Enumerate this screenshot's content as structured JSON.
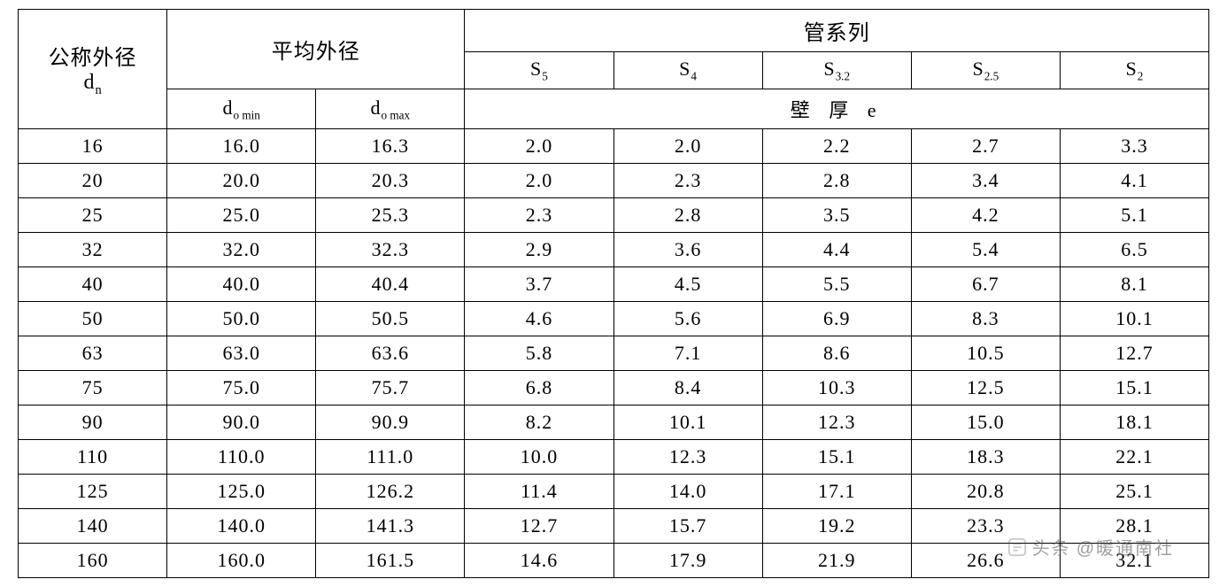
{
  "headers": {
    "nominal_od": "公称外径",
    "nominal_od_sym": "d",
    "nominal_od_sub": "n",
    "avg_od": "平均外径",
    "pipe_series": "管系列",
    "d_sym": "d",
    "d_sub_prefix": "o",
    "d_min_sub": " min",
    "d_max_sub": " max",
    "wall_thickness": "壁 厚 e",
    "series_sym": "S",
    "series_subs": [
      "5",
      "4",
      "3.2",
      "2.5",
      "2"
    ]
  },
  "columns": [
    "dn",
    "do_min",
    "do_max",
    "S5",
    "S4",
    "S3_2",
    "S2_5",
    "S2"
  ],
  "col_widths": [
    "12.5%",
    "12.5%",
    "12.5%",
    "12.5%",
    "12.5%",
    "12.5%",
    "12.5%",
    "12.5%"
  ],
  "rows": [
    [
      "16",
      "16.0",
      "16.3",
      "2.0",
      "2.0",
      "2.2",
      "2.7",
      "3.3"
    ],
    [
      "20",
      "20.0",
      "20.3",
      "2.0",
      "2.3",
      "2.8",
      "3.4",
      "4.1"
    ],
    [
      "25",
      "25.0",
      "25.3",
      "2.3",
      "2.8",
      "3.5",
      "4.2",
      "5.1"
    ],
    [
      "32",
      "32.0",
      "32.3",
      "2.9",
      "3.6",
      "4.4",
      "5.4",
      "6.5"
    ],
    [
      "40",
      "40.0",
      "40.4",
      "3.7",
      "4.5",
      "5.5",
      "6.7",
      "8.1"
    ],
    [
      "50",
      "50.0",
      "50.5",
      "4.6",
      "5.6",
      "6.9",
      "8.3",
      "10.1"
    ],
    [
      "63",
      "63.0",
      "63.6",
      "5.8",
      "7.1",
      "8.6",
      "10.5",
      "12.7"
    ],
    [
      "75",
      "75.0",
      "75.7",
      "6.8",
      "8.4",
      "10.3",
      "12.5",
      "15.1"
    ],
    [
      "90",
      "90.0",
      "90.9",
      "8.2",
      "10.1",
      "12.3",
      "15.0",
      "18.1"
    ],
    [
      "110",
      "110.0",
      "111.0",
      "10.0",
      "12.3",
      "15.1",
      "18.3",
      "22.1"
    ],
    [
      "125",
      "125.0",
      "126.2",
      "11.4",
      "14.0",
      "17.1",
      "20.8",
      "25.1"
    ],
    [
      "140",
      "140.0",
      "141.3",
      "12.7",
      "15.7",
      "19.2",
      "23.3",
      "28.1"
    ],
    [
      "160",
      "160.0",
      "161.5",
      "14.6",
      "17.9",
      "21.9",
      "26.6",
      "32.1"
    ]
  ],
  "watermark": {
    "prefix": "头条",
    "account": "@暖通南社"
  },
  "style": {
    "border_color": "#000000",
    "background": "#ffffff",
    "text_color": "#000000",
    "font_size_body": 22,
    "font_size_header": 24
  }
}
